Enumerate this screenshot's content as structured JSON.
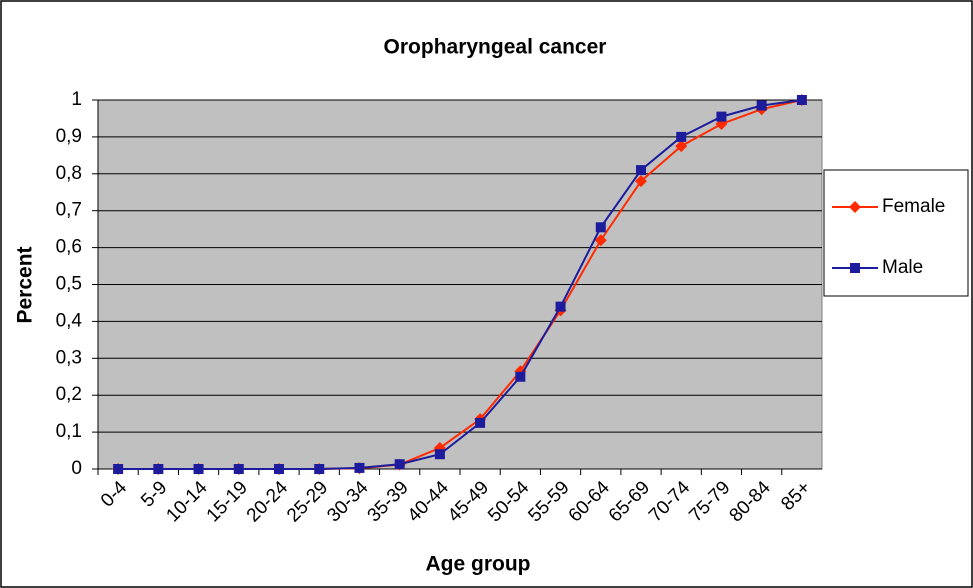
{
  "chart_data": {
    "type": "line",
    "title": "Oropharyngeal cancer",
    "x_label": "Age group",
    "y_label": "Percent",
    "categories": [
      "0-4",
      "5-9",
      "10-14",
      "15-19",
      "20-24",
      "25-29",
      "30-34",
      "35-39",
      "40-44",
      "45-49",
      "50-54",
      "55-59",
      "60-64",
      "65-69",
      "70-74",
      "75-79",
      "80-84",
      "85+"
    ],
    "series": [
      {
        "name": "Female",
        "color": "#ff2a00",
        "marker": "diamond",
        "values": [
          0,
          0,
          0,
          0,
          0,
          0,
          0.002,
          0.012,
          0.057,
          0.135,
          0.265,
          0.43,
          0.62,
          0.78,
          0.875,
          0.935,
          0.975,
          1.0
        ]
      },
      {
        "name": "Male",
        "color": "#1c1c9c",
        "marker": "square",
        "values": [
          0,
          0,
          0,
          0,
          0,
          0,
          0.003,
          0.013,
          0.04,
          0.125,
          0.25,
          0.44,
          0.655,
          0.81,
          0.9,
          0.955,
          0.985,
          1.0
        ]
      }
    ],
    "ylim": [
      0,
      1
    ],
    "yticks": [
      0,
      {
        "value": 0.1,
        "label": "0,1"
      },
      {
        "value": 0.2,
        "label": "0,2"
      },
      {
        "value": 0.3,
        "label": "0,3"
      },
      {
        "value": 0.4,
        "label": "0,4"
      },
      {
        "value": 0.5,
        "label": "0,5"
      },
      {
        "value": 0.6,
        "label": "0,6"
      },
      {
        "value": 0.7,
        "label": "0,7"
      },
      {
        "value": 0.8,
        "label": "0,8"
      },
      {
        "value": 0.9,
        "label": "0,9"
      },
      1
    ],
    "grid": true,
    "legend": "right",
    "plot_background": "#c0c0c0"
  }
}
